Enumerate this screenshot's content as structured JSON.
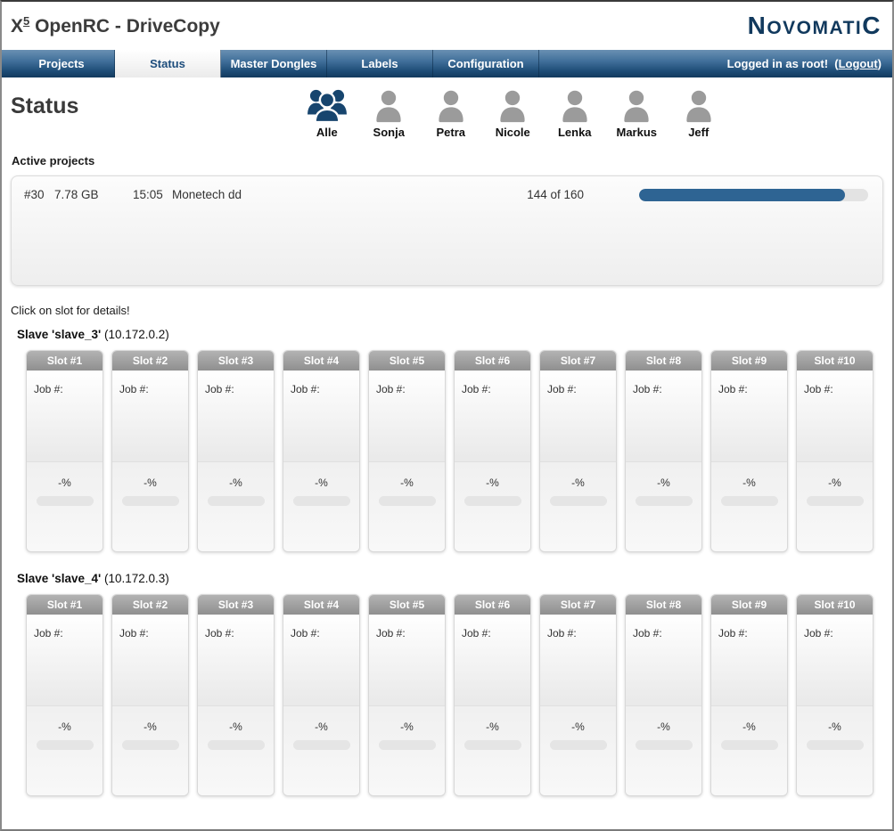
{
  "header": {
    "title_x": "X",
    "title_sup": "5",
    "title_rest": " OpenRC - DriveCopy",
    "logo_n": "N",
    "logo_mid": "OVOMATI",
    "logo_c": "C"
  },
  "nav": {
    "tabs": [
      {
        "label": "Projects",
        "active": false
      },
      {
        "label": "Status",
        "active": true
      },
      {
        "label": "Master Dongles",
        "active": false
      },
      {
        "label": "Labels",
        "active": false
      },
      {
        "label": "Configuration",
        "active": false
      }
    ],
    "login_text": "Logged in as root!  ",
    "logout_prefix": "(",
    "logout_label": "Logout",
    "logout_suffix": ")"
  },
  "page": {
    "title": "Status"
  },
  "filters": {
    "users": [
      {
        "name": "Alle",
        "icon": "group-icon",
        "active": true
      },
      {
        "name": "Sonja",
        "icon": "person-icon",
        "active": false
      },
      {
        "name": "Petra",
        "icon": "person-icon",
        "active": false
      },
      {
        "name": "Nicole",
        "icon": "person-icon",
        "active": false
      },
      {
        "name": "Lenka",
        "icon": "person-icon",
        "active": false
      },
      {
        "name": "Markus",
        "icon": "person-icon",
        "active": false
      },
      {
        "name": "Jeff",
        "icon": "person-icon",
        "active": false
      }
    ]
  },
  "active_projects": {
    "heading": "Active projects",
    "rows": [
      {
        "id": "#30",
        "size": "7.78 GB",
        "time": "15:05",
        "name": "Monetech dd",
        "progress_text": "144 of 160",
        "progress_pct": 90
      }
    ]
  },
  "slots_hint": "Click on slot for details!",
  "slot_defaults": {
    "job_label": "Job #:",
    "percent_label": "-%"
  },
  "slaves": [
    {
      "name": "Slave 'slave_3'",
      "ip": "(10.172.0.2)",
      "slot_labels": [
        "Slot #1",
        "Slot #2",
        "Slot #3",
        "Slot #4",
        "Slot #5",
        "Slot #6",
        "Slot #7",
        "Slot #8",
        "Slot #9",
        "Slot #10"
      ]
    },
    {
      "name": "Slave 'slave_4'",
      "ip": "(10.172.0.3)",
      "slot_labels": [
        "Slot #1",
        "Slot #2",
        "Slot #3",
        "Slot #4",
        "Slot #5",
        "Slot #6",
        "Slot #7",
        "Slot #8",
        "Slot #9",
        "Slot #10"
      ]
    }
  ],
  "colors": {
    "accent_progress": "#2e6493",
    "brand_navy": "#11395d",
    "group_icon_navy": "#17456e",
    "person_icon_gray": "#9b9b9b",
    "nav_gradient_top": "#6a90b2",
    "nav_gradient_bottom": "#133a5e",
    "slot_header_gray": "#9c9c9c"
  }
}
